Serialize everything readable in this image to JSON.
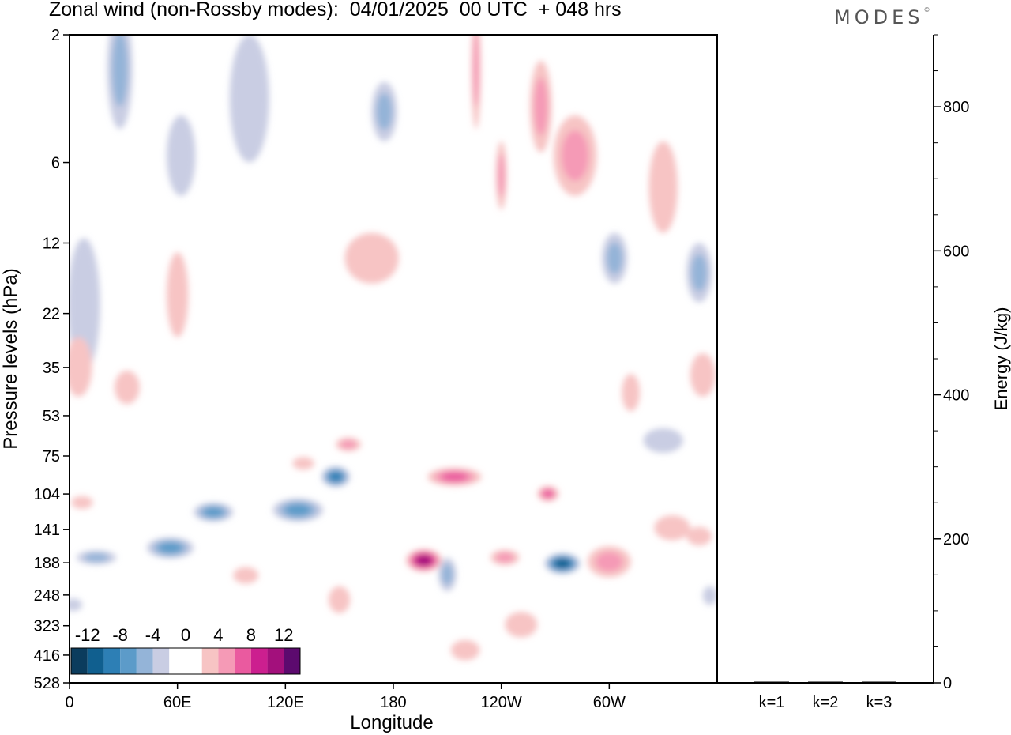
{
  "title": "Zonal wind (non-Rossby modes):  04/01/2025  00 UTC  + 048 hrs",
  "logo": "MODES",
  "chart_data": [
    {
      "type": "heatmap",
      "xlabel": "Longitude",
      "ylabel": "Pressure levels (hPa)",
      "x_ticks": [
        "0",
        "60E",
        "120E",
        "180",
        "120W",
        "60W"
      ],
      "x_tick_degrees": [
        0,
        60,
        120,
        180,
        240,
        300
      ],
      "x_range": [
        0,
        360
      ],
      "y_ticks": [
        2,
        6,
        12,
        22,
        35,
        53,
        75,
        104,
        141,
        188,
        248,
        323,
        416,
        528
      ],
      "colorbar": {
        "labels": [
          "-12",
          "-8",
          "-4",
          "0",
          "4",
          "8",
          "12"
        ],
        "colors": [
          "#0b3c5d",
          "#105f8f",
          "#2d7fb5",
          "#5c9bc9",
          "#94b4d8",
          "#c9cde3",
          "#ffffff",
          "#ffffff",
          "#f7c4c4",
          "#f59ab6",
          "#ea5a9f",
          "#cc1f8f",
          "#a3107c",
          "#5c0a6e"
        ]
      },
      "features": [
        {
          "lon": 8,
          "p": 24,
          "w": 18,
          "h": 25,
          "v": -4
        },
        {
          "lon": 5,
          "p": 36,
          "w": 15,
          "h": 18,
          "v": 4
        },
        {
          "lon": 7,
          "p": 112,
          "w": 12,
          "h": 10,
          "v": 4
        },
        {
          "lon": 15,
          "p": 180,
          "w": 22,
          "h": 22,
          "v": -6
        },
        {
          "lon": 2,
          "p": 270,
          "w": 10,
          "h": 14,
          "v": -5
        },
        {
          "lon": 28,
          "p": 3,
          "w": 14,
          "h": 3,
          "v": -6
        },
        {
          "lon": 32,
          "p": 42,
          "w": 14,
          "h": 12,
          "v": 4
        },
        {
          "lon": 60,
          "p": 20,
          "w": 12,
          "h": 14,
          "v": 4
        },
        {
          "lon": 62,
          "p": 6,
          "w": 16,
          "h": 4,
          "v": -4
        },
        {
          "lon": 56,
          "p": 166,
          "w": 26,
          "h": 30,
          "v": -8
        },
        {
          "lon": 80,
          "p": 122,
          "w": 22,
          "h": 20,
          "v": -8
        },
        {
          "lon": 100,
          "p": 4,
          "w": 22,
          "h": 4,
          "v": -5
        },
        {
          "lon": 98,
          "p": 210,
          "w": 14,
          "h": 30,
          "v": 4
        },
        {
          "lon": 127,
          "p": 120,
          "w": 28,
          "h": 24,
          "v": -8
        },
        {
          "lon": 130,
          "p": 80,
          "w": 12,
          "h": 8,
          "v": 5
        },
        {
          "lon": 148,
          "p": 90,
          "w": 16,
          "h": 16,
          "v": -10
        },
        {
          "lon": 155,
          "p": 68,
          "w": 14,
          "h": 8,
          "v": 6
        },
        {
          "lon": 150,
          "p": 260,
          "w": 12,
          "h": 60,
          "v": 4
        },
        {
          "lon": 175,
          "p": 4,
          "w": 14,
          "h": 2,
          "v": -6
        },
        {
          "lon": 168,
          "p": 14,
          "w": 30,
          "h": 6,
          "v": 4
        },
        {
          "lon": 197,
          "p": 185,
          "w": 20,
          "h": 36,
          "v": 13
        },
        {
          "lon": 214,
          "p": 90,
          "w": 30,
          "h": 14,
          "v": 9
        },
        {
          "lon": 210,
          "p": 210,
          "w": 10,
          "h": 60,
          "v": -7
        },
        {
          "lon": 220,
          "p": 400,
          "w": 16,
          "h": 70,
          "v": 4
        },
        {
          "lon": 242,
          "p": 180,
          "w": 16,
          "h": 24,
          "v": 6
        },
        {
          "lon": 251,
          "p": 322,
          "w": 18,
          "h": 70,
          "v": 5
        },
        {
          "lon": 266,
          "p": 104,
          "w": 12,
          "h": 14,
          "v": 9
        },
        {
          "lon": 274,
          "p": 190,
          "w": 20,
          "h": 34,
          "v": -12
        },
        {
          "lon": 281,
          "p": 6,
          "w": 24,
          "h": 4,
          "v": 6
        },
        {
          "lon": 300,
          "p": 188,
          "w": 24,
          "h": 50,
          "v": 6
        },
        {
          "lon": 303,
          "p": 14,
          "w": 14,
          "h": 6,
          "v": -6
        },
        {
          "lon": 262,
          "p": 4,
          "w": 12,
          "h": 3,
          "v": 6
        },
        {
          "lon": 312,
          "p": 44,
          "w": 10,
          "h": 14,
          "v": 4
        },
        {
          "lon": 330,
          "p": 8,
          "w": 16,
          "h": 6,
          "v": 4
        },
        {
          "lon": 330,
          "p": 66,
          "w": 22,
          "h": 14,
          "v": -4
        },
        {
          "lon": 335,
          "p": 140,
          "w": 20,
          "h": 30,
          "v": 4
        },
        {
          "lon": 350,
          "p": 16,
          "w": 14,
          "h": 8,
          "v": -6
        },
        {
          "lon": 352,
          "p": 38,
          "w": 14,
          "h": 14,
          "v": 5
        },
        {
          "lon": 350,
          "p": 150,
          "w": 14,
          "h": 24,
          "v": 5
        },
        {
          "lon": 356,
          "p": 250,
          "w": 8,
          "h": 40,
          "v": -5
        },
        {
          "lon": 226,
          "p": 3,
          "w": 4,
          "h": 3,
          "v": 6
        },
        {
          "lon": 240,
          "p": 7,
          "w": 6,
          "h": 4,
          "v": 6
        }
      ]
    },
    {
      "type": "bar",
      "ylabel": "Energy (J/kg)",
      "categories": [
        "k=1",
        "k=2",
        "k=3"
      ],
      "values": [
        1,
        1,
        1
      ],
      "ylim": [
        0,
        900
      ],
      "y_ticks": [
        0,
        200,
        400,
        600,
        800
      ]
    }
  ]
}
